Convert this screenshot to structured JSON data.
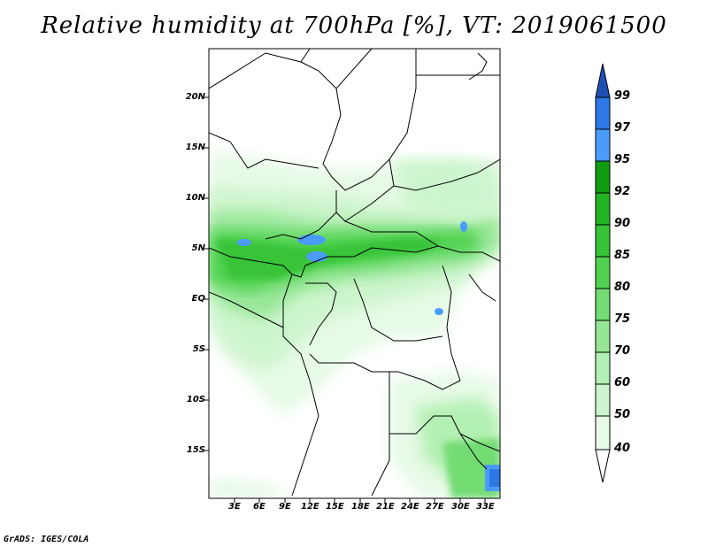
{
  "title": "Relative humidity at 700hPa [%], VT: 2019061500",
  "credit": "GrADS: IGES/COLA",
  "map": {
    "lat_labels": [
      "20N",
      "15N",
      "10N",
      "5N",
      "EQ",
      "5S",
      "10S",
      "15S"
    ],
    "lon_labels": [
      "3E",
      "6E",
      "9E",
      "12E",
      "15E",
      "18E",
      "21E",
      "24E",
      "27E",
      "30E",
      "33E"
    ]
  },
  "colorbar": {
    "levels": [
      "40",
      "50",
      "60",
      "70",
      "75",
      "80",
      "85",
      "90",
      "92",
      "95",
      "97",
      "99"
    ],
    "colors": [
      "#ffffff",
      "#e6fae6",
      "#cdf5cd",
      "#b3f0b3",
      "#96e696",
      "#73dc73",
      "#50d250",
      "#37c337",
      "#23b423",
      "#109c10",
      "#4b9bff",
      "#2d78e6",
      "#1e50b4"
    ]
  }
}
